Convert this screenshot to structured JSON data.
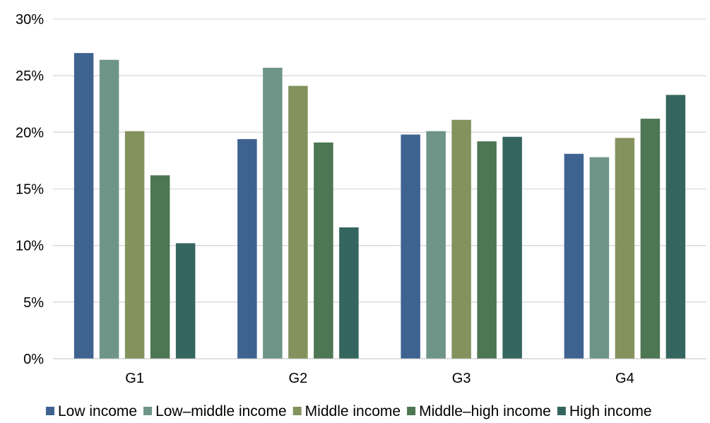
{
  "chart_data": {
    "type": "bar",
    "title": "",
    "xlabel": "",
    "ylabel": "",
    "categories": [
      "G1",
      "G2",
      "G3",
      "G4"
    ],
    "ylim": [
      0,
      30
    ],
    "yticks": [
      "0%",
      "5%",
      "10%",
      "15%",
      "20%",
      "25%",
      "30%"
    ],
    "grid": true,
    "legend_position": "bottom",
    "series": [
      {
        "name": "Low income",
        "color": "#3f6391",
        "values": [
          27.0,
          19.4,
          19.8,
          18.1
        ]
      },
      {
        "name": "Low–middle income",
        "color": "#6e9588",
        "values": [
          26.4,
          25.7,
          20.1,
          17.8
        ]
      },
      {
        "name": "Middle income",
        "color": "#84925e",
        "values": [
          20.1,
          24.1,
          21.1,
          19.5
        ]
      },
      {
        "name": "Middle–high income",
        "color": "#4d7653",
        "values": [
          16.2,
          19.1,
          19.2,
          21.2
        ]
      },
      {
        "name": "High income",
        "color": "#35655f",
        "values": [
          10.2,
          11.6,
          19.6,
          23.3
        ]
      }
    ]
  }
}
